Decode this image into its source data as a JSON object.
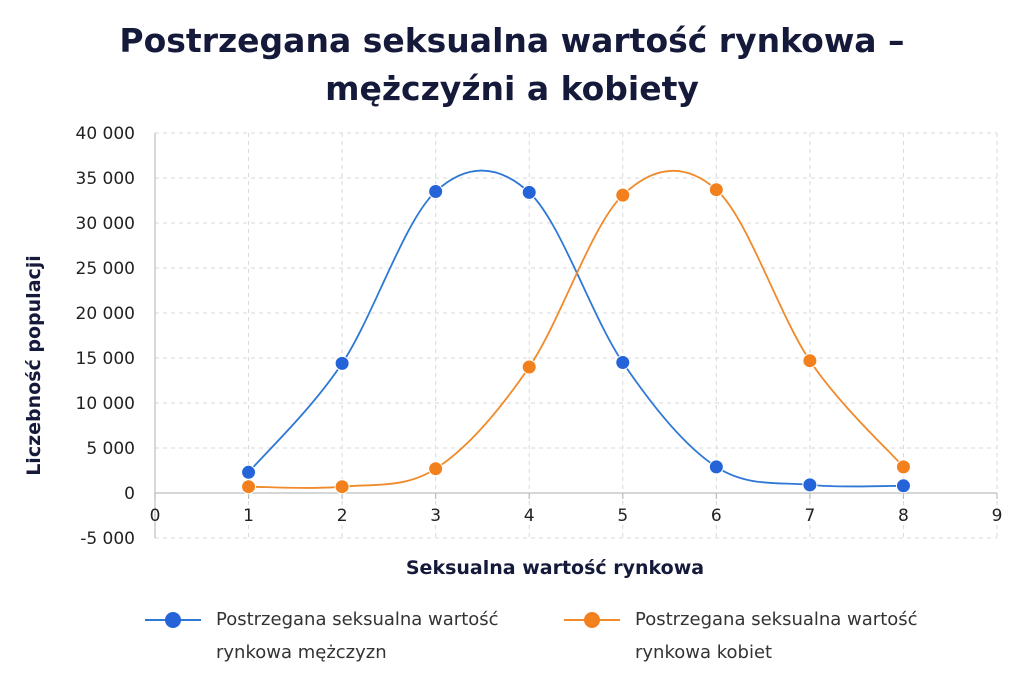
{
  "chart_data": {
    "type": "line",
    "title_lines": [
      "Postrzegana seksualna wartość rynkowa –",
      "mężczyźni a kobiety"
    ],
    "xlabel": "Seksualna wartość rynkowa",
    "ylabel": "Liczebność populacji",
    "xlim": [
      0,
      9
    ],
    "ylim": [
      -5000,
      40000
    ],
    "x_ticks": [
      0,
      1,
      2,
      3,
      4,
      5,
      6,
      7,
      8,
      9
    ],
    "y_ticks": [
      -5000,
      0,
      5000,
      10000,
      15000,
      20000,
      25000,
      30000,
      35000,
      40000
    ],
    "x_tick_labels": [
      "0",
      "1",
      "2",
      "3",
      "4",
      "5",
      "6",
      "7",
      "8",
      "9"
    ],
    "y_tick_labels": [
      "-5 000",
      "0",
      "5 000",
      "10 000",
      "15 000",
      "20 000",
      "25 000",
      "30 000",
      "35 000",
      "40 000"
    ],
    "grid": true,
    "smooth": true,
    "legend_position": "bottom",
    "series": [
      {
        "name_lines": [
          "Postrzegana seksualna wartość",
          "rynkowa mężczyzn"
        ],
        "color": "#2f78d6",
        "marker_color": "#2563d9",
        "x": [
          1,
          2,
          3,
          4,
          5,
          6,
          7,
          8
        ],
        "y": [
          2300,
          14400,
          33500,
          33400,
          14500,
          2900,
          900,
          800
        ]
      },
      {
        "name_lines": [
          "Postrzegana seksualna wartość",
          "rynkowa kobiet"
        ],
        "color": "#f08a2a",
        "marker_color": "#f2801c",
        "x": [
          1,
          2,
          3,
          4,
          5,
          6,
          7,
          8
        ],
        "y": [
          700,
          700,
          2700,
          14000,
          33100,
          33700,
          14700,
          2900
        ]
      }
    ]
  }
}
